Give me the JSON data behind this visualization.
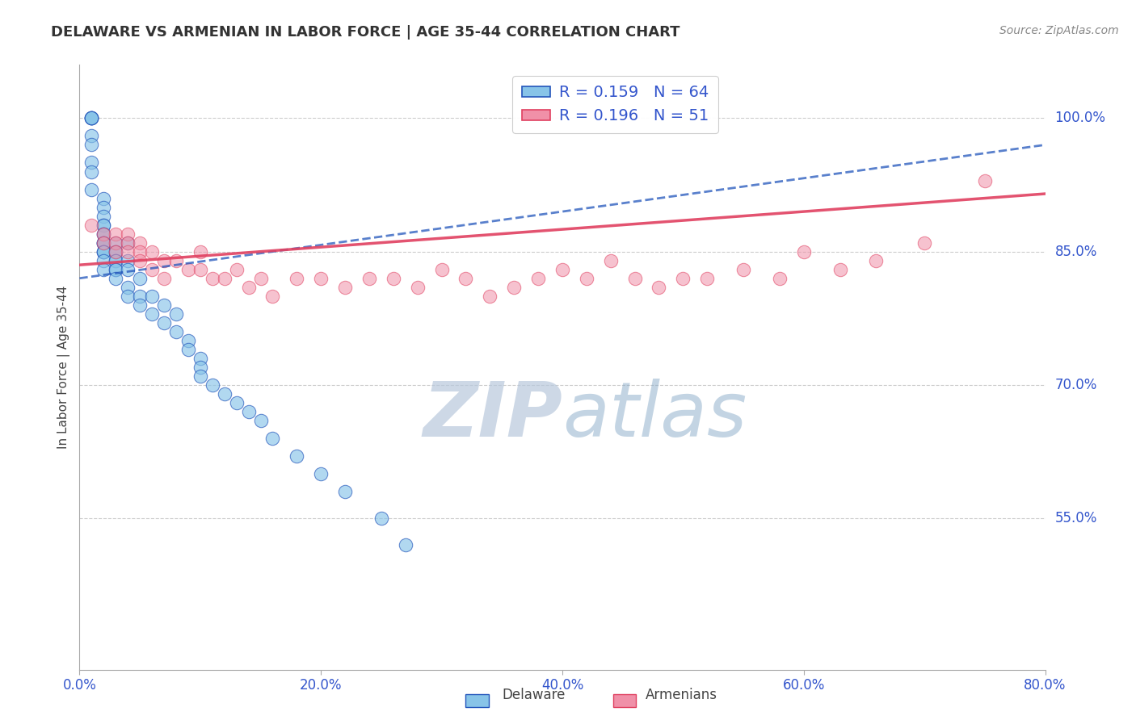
{
  "title": "DELAWARE VS ARMENIAN IN LABOR FORCE | AGE 35-44 CORRELATION CHART",
  "source": "Source: ZipAtlas.com",
  "ylabel": "In Labor Force | Age 35-44",
  "legend_label1": "Delaware",
  "legend_label2": "Armenians",
  "R1": 0.159,
  "N1": 64,
  "R2": 0.196,
  "N2": 51,
  "xlim": [
    0.0,
    0.8
  ],
  "ylim": [
    0.38,
    1.06
  ],
  "yticks": [
    0.55,
    0.7,
    0.85,
    1.0
  ],
  "ytick_labels": [
    "55.0%",
    "70.0%",
    "85.0%",
    "100.0%"
  ],
  "xtick_labels": [
    "0.0%",
    "20.0%",
    "40.0%",
    "60.0%",
    "80.0%"
  ],
  "xticks": [
    0.0,
    0.2,
    0.4,
    0.6,
    0.8
  ],
  "color_blue": "#88c4e8",
  "color_pink": "#f090a8",
  "color_blue_line": "#2255bb",
  "color_pink_line": "#e04060",
  "watermark_zip": "ZIP",
  "watermark_atlas": "atlas",
  "blue_x": [
    0.01,
    0.01,
    0.01,
    0.01,
    0.01,
    0.01,
    0.01,
    0.01,
    0.01,
    0.01,
    0.02,
    0.02,
    0.02,
    0.02,
    0.02,
    0.02,
    0.02,
    0.02,
    0.02,
    0.02,
    0.02,
    0.02,
    0.02,
    0.02,
    0.02,
    0.02,
    0.03,
    0.03,
    0.03,
    0.03,
    0.03,
    0.03,
    0.03,
    0.03,
    0.04,
    0.04,
    0.04,
    0.04,
    0.04,
    0.05,
    0.05,
    0.05,
    0.06,
    0.06,
    0.07,
    0.07,
    0.08,
    0.08,
    0.09,
    0.09,
    0.1,
    0.1,
    0.1,
    0.11,
    0.12,
    0.13,
    0.14,
    0.15,
    0.16,
    0.18,
    0.2,
    0.22,
    0.25,
    0.27
  ],
  "blue_y": [
    1.0,
    1.0,
    1.0,
    1.0,
    1.0,
    0.98,
    0.97,
    0.95,
    0.94,
    0.92,
    0.91,
    0.9,
    0.89,
    0.88,
    0.88,
    0.87,
    0.87,
    0.86,
    0.86,
    0.86,
    0.86,
    0.85,
    0.85,
    0.85,
    0.84,
    0.83,
    0.86,
    0.85,
    0.85,
    0.84,
    0.84,
    0.83,
    0.83,
    0.82,
    0.86,
    0.84,
    0.83,
    0.81,
    0.8,
    0.82,
    0.8,
    0.79,
    0.8,
    0.78,
    0.79,
    0.77,
    0.78,
    0.76,
    0.75,
    0.74,
    0.73,
    0.72,
    0.71,
    0.7,
    0.69,
    0.68,
    0.67,
    0.66,
    0.64,
    0.62,
    0.6,
    0.58,
    0.55,
    0.52
  ],
  "pink_x": [
    0.01,
    0.02,
    0.02,
    0.03,
    0.03,
    0.03,
    0.04,
    0.04,
    0.04,
    0.05,
    0.05,
    0.05,
    0.06,
    0.06,
    0.07,
    0.07,
    0.08,
    0.09,
    0.1,
    0.1,
    0.11,
    0.12,
    0.13,
    0.14,
    0.15,
    0.16,
    0.18,
    0.2,
    0.22,
    0.24,
    0.26,
    0.28,
    0.3,
    0.32,
    0.34,
    0.36,
    0.38,
    0.4,
    0.42,
    0.44,
    0.46,
    0.48,
    0.5,
    0.52,
    0.55,
    0.58,
    0.6,
    0.63,
    0.66,
    0.7,
    0.75
  ],
  "pink_y": [
    0.88,
    0.87,
    0.86,
    0.87,
    0.86,
    0.85,
    0.87,
    0.86,
    0.85,
    0.86,
    0.85,
    0.84,
    0.85,
    0.83,
    0.84,
    0.82,
    0.84,
    0.83,
    0.85,
    0.83,
    0.82,
    0.82,
    0.83,
    0.81,
    0.82,
    0.8,
    0.82,
    0.82,
    0.81,
    0.82,
    0.82,
    0.81,
    0.83,
    0.82,
    0.8,
    0.81,
    0.82,
    0.83,
    0.82,
    0.84,
    0.82,
    0.81,
    0.82,
    0.82,
    0.83,
    0.82,
    0.85,
    0.83,
    0.84,
    0.86,
    0.93
  ],
  "blue_trend_x": [
    0.0,
    0.8
  ],
  "blue_trend_y": [
    0.82,
    0.97
  ],
  "pink_trend_x": [
    0.0,
    0.8
  ],
  "pink_trend_y": [
    0.835,
    0.915
  ]
}
